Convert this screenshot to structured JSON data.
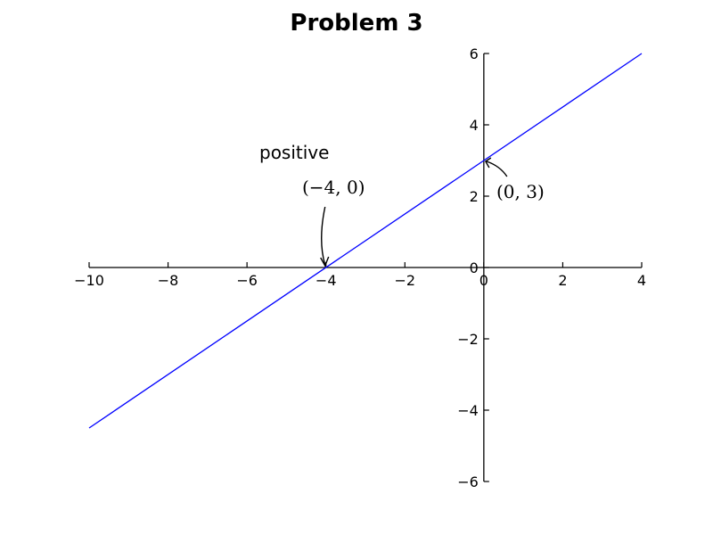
{
  "chart_data": {
    "type": "line",
    "title": "Problem 3",
    "xlim": [
      -10,
      4
    ],
    "ylim": [
      -6,
      6
    ],
    "xticks": [
      -10,
      -8,
      -6,
      -4,
      -2,
      0,
      2,
      4
    ],
    "yticks": [
      -6,
      -4,
      -2,
      0,
      2,
      4,
      6
    ],
    "x_tick_labels": [
      "−10",
      "−8",
      "−6",
      "−4",
      "−2",
      "0",
      "2",
      "4"
    ],
    "y_tick_labels": [
      "−6",
      "−4",
      "−2",
      "0",
      "2",
      "4",
      "6"
    ],
    "series": [
      {
        "color": "#0000ff",
        "points": [
          [
            -10,
            -4.5
          ],
          [
            4,
            6
          ]
        ]
      }
    ],
    "annotations": [
      {
        "text": "(−4, 0)",
        "point": [
          -4,
          0
        ]
      },
      {
        "text": "(0, 3)",
        "point": [
          0,
          3
        ]
      }
    ],
    "text_label": "positive",
    "grid": false
  }
}
